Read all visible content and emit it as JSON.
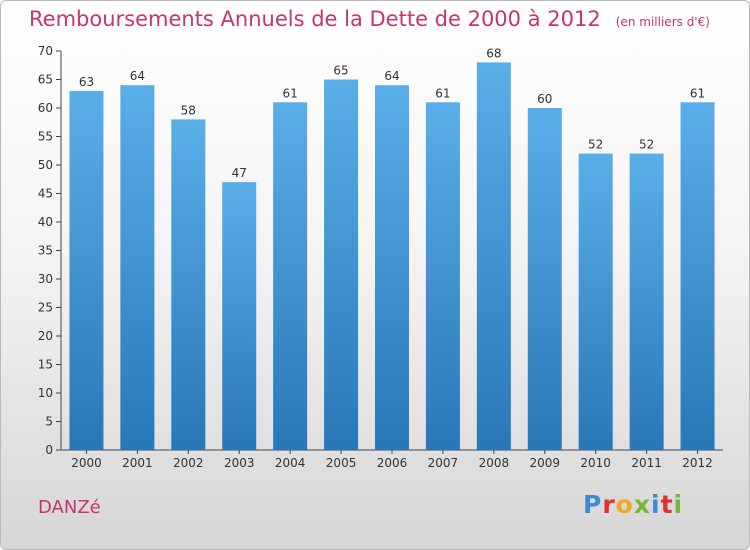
{
  "title": "Remboursements Annuels de la Dette de 2000 à 2012",
  "unit_note": "(en milliers d'€)",
  "commune": "DANZé",
  "logo": {
    "letters": [
      {
        "ch": "P",
        "color": "#3a8ad6"
      },
      {
        "ch": "r",
        "color": "#e0322f"
      },
      {
        "ch": "o",
        "color": "#f5a623"
      },
      {
        "ch": "x",
        "color": "#7ab636"
      },
      {
        "ch": "i",
        "color": "#3a8ad6"
      },
      {
        "ch": "t",
        "color": "#e0322f"
      },
      {
        "ch": "i",
        "color": "#7ab636"
      }
    ]
  },
  "colors": {
    "accent": "#c8346e",
    "bar_top": "#5aaee8",
    "bar_bottom": "#2a77b7"
  },
  "chart_data": {
    "type": "bar",
    "title": "Remboursements Annuels de la Dette de 2000 à 2012",
    "categories": [
      "2000",
      "2001",
      "2002",
      "2003",
      "2004",
      "2005",
      "2006",
      "2007",
      "2008",
      "2009",
      "2010",
      "2011",
      "2012"
    ],
    "values": [
      63,
      64,
      58,
      47,
      61,
      65,
      64,
      61,
      68,
      60,
      52,
      52,
      61
    ],
    "ylim": [
      0,
      70
    ],
    "yticks": [
      0,
      5,
      10,
      15,
      20,
      25,
      30,
      35,
      40,
      45,
      50,
      55,
      60,
      65,
      70
    ],
    "grid": false,
    "legend": "none"
  }
}
